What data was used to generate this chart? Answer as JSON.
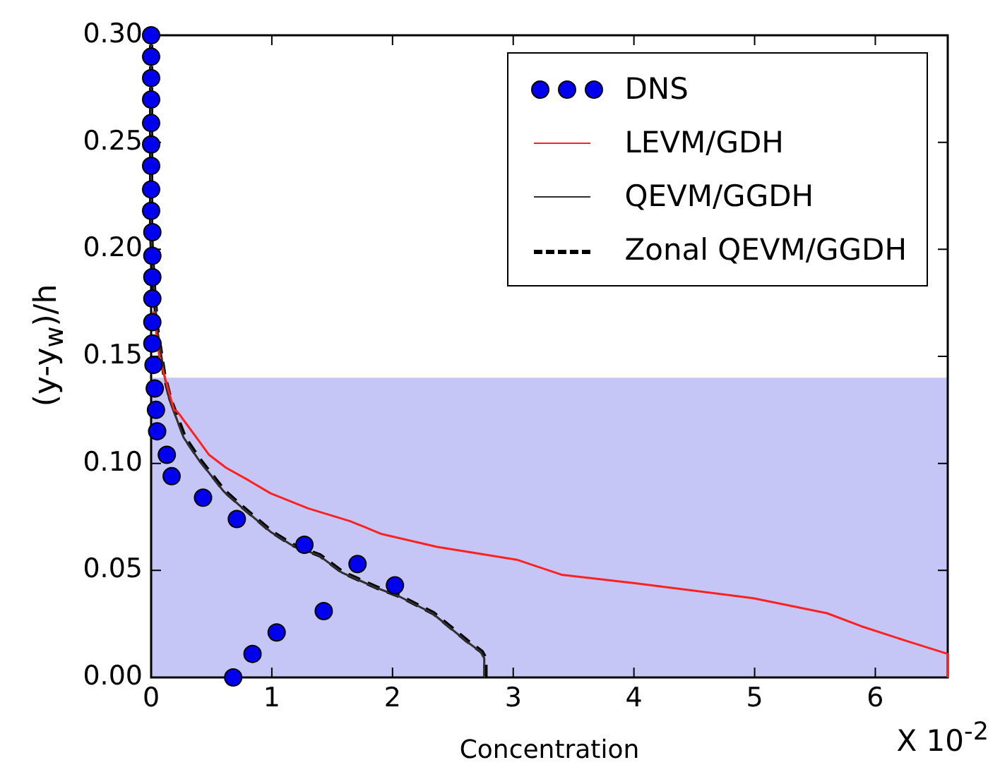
{
  "chart_data": {
    "type": "line",
    "xlabel": "Concentration",
    "ylabel": "(y-y$_{w}$)/h",
    "annotations": [
      "X 10$^{-2}$"
    ],
    "xlim": [
      0,
      6.6
    ],
    "xticks": [
      0,
      1,
      2,
      3,
      4,
      5,
      6
    ],
    "ylim": [
      0,
      0.3
    ],
    "yticks": [
      {
        "value": 0,
        "label": "0.00"
      },
      0.05,
      {
        "value": 0.1,
        "label": "0.10"
      },
      0.15,
      {
        "value": 0.2,
        "label": "0.20"
      },
      0.25,
      {
        "value": 0.3,
        "label": "0.30"
      }
    ],
    "grid": false,
    "legend": "top right",
    "bands": [
      {
        "axis": "y",
        "from": 0,
        "to": 0.14,
        "color": "#c5c6f5"
      }
    ],
    "series": [
      {
        "name": "DNS",
        "type": "scatter",
        "marker": "circle",
        "color": "#0000ee",
        "x": [
          0.68,
          0.84,
          1.04,
          1.43,
          2.02,
          1.71,
          1.27,
          0.71,
          0.43,
          0.17,
          0.13,
          0.05,
          0.04,
          0.03,
          0.02,
          0.01,
          0.01,
          0.01,
          0.01,
          0.01,
          0.01,
          0.0,
          0.0,
          0.0,
          0.0,
          0.0,
          0.0,
          0.0,
          0.0,
          0.0
        ],
        "values": [
          0.0,
          0.011,
          0.021,
          0.031,
          0.043,
          0.053,
          0.062,
          0.074,
          0.084,
          0.094,
          0.104,
          0.115,
          0.125,
          0.135,
          0.146,
          0.156,
          0.166,
          0.177,
          0.187,
          0.197,
          0.208,
          0.218,
          0.228,
          0.239,
          0.249,
          0.259,
          0.27,
          0.28,
          0.29,
          0.3
        ]
      },
      {
        "name": "LEVM/GDH",
        "type": "line",
        "line_style": "solid",
        "marker": "none",
        "color": "#ff2020",
        "x": [
          6.6,
          6.6,
          6.26,
          5.88,
          5.6,
          4.99,
          4.01,
          3.4,
          3.03,
          2.37,
          1.91,
          1.65,
          1.3,
          0.99,
          0.81,
          0.62,
          0.48,
          0.39,
          0.22,
          0.19,
          0.07,
          0.02
        ],
        "values": [
          0.0,
          0.011,
          0.017,
          0.024,
          0.03,
          0.037,
          0.044,
          0.048,
          0.055,
          0.061,
          0.067,
          0.073,
          0.079,
          0.086,
          0.092,
          0.098,
          0.104,
          0.111,
          0.124,
          0.125,
          0.149,
          0.171
        ]
      },
      {
        "name": "QEVM/GGDH",
        "type": "line",
        "line_style": "solid",
        "marker": "none",
        "color": "#303030",
        "x": [
          2.76,
          2.76,
          2.73,
          2.61,
          2.33,
          2.05,
          1.86,
          1.58,
          1.39,
          1.16,
          0.99,
          0.74,
          0.6,
          0.39,
          0.27,
          0.15,
          0.11,
          0.05,
          0.02,
          0.0,
          0.0
        ],
        "values": [
          0.0,
          0.009,
          0.012,
          0.017,
          0.03,
          0.038,
          0.042,
          0.049,
          0.057,
          0.062,
          0.068,
          0.08,
          0.087,
          0.102,
          0.112,
          0.13,
          0.141,
          0.163,
          0.185,
          0.207,
          0.3
        ]
      },
      {
        "name": "Zonal QEVM/GGDH",
        "type": "line",
        "line_style": "dashed",
        "marker": "none",
        "color": "#000000",
        "x": [
          2.77,
          2.77,
          2.74,
          2.62,
          2.34,
          2.06,
          1.87,
          1.59,
          1.4,
          1.17,
          1.0,
          0.75,
          0.61,
          0.4,
          0.28,
          0.16,
          0.11,
          0.05,
          0.02,
          0.0,
          0.0
        ],
        "values": [
          0.0,
          0.009,
          0.012,
          0.017,
          0.03,
          0.038,
          0.042,
          0.049,
          0.057,
          0.062,
          0.068,
          0.08,
          0.087,
          0.102,
          0.112,
          0.13,
          0.141,
          0.163,
          0.185,
          0.207,
          0.3
        ]
      }
    ]
  }
}
